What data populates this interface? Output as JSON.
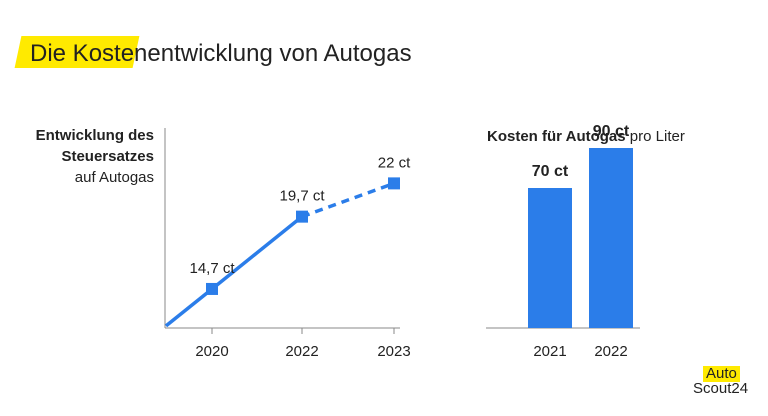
{
  "title": "Die Kostenentwicklung von Autogas",
  "chart_data": [
    {
      "type": "line",
      "label_lines": [
        "Entwicklung des",
        "Steuersatzes",
        "auf Autogas"
      ],
      "categories": [
        "2020",
        "2022",
        "2023"
      ],
      "points": [
        {
          "x": "2020",
          "value": 14.7,
          "label": "14,7 ct"
        },
        {
          "x": "2022",
          "value": 19.7,
          "label": "19,7 ct"
        },
        {
          "x": "2023",
          "value": 22,
          "label": "22 ct",
          "projected": true
        }
      ],
      "ylim": [
        12,
        25
      ],
      "grid": false,
      "color": "#2b7de9"
    },
    {
      "type": "bar",
      "title_bold": "Kosten für Autogas",
      "title_rest": " pro Liter",
      "categories": [
        "2021",
        "2022"
      ],
      "values": [
        70,
        90
      ],
      "value_labels": [
        "70 ct",
        "90 ct"
      ],
      "ylim": [
        0,
        100
      ],
      "color": "#2b7de9"
    }
  ],
  "logo": {
    "line1": "Auto",
    "line2": "Scout24"
  }
}
